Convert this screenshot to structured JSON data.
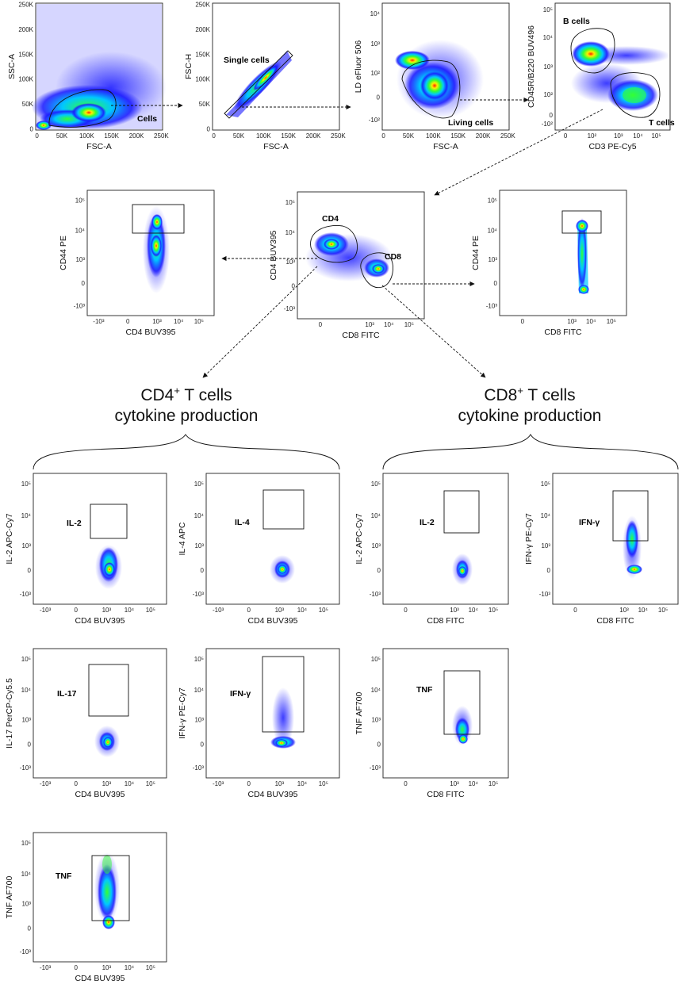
{
  "headings": {
    "cd4": {
      "line1": "CD4",
      "sup": "+",
      "rest": " T cells",
      "line2": "cytokine production"
    },
    "cd8": {
      "line1": "CD8",
      "sup": "+",
      "rest": " T cells",
      "line2": "cytokine production"
    }
  },
  "panels": [
    {
      "id": "p1",
      "xlabel": "FSC-A",
      "ylabel": "SSC-A",
      "xscale": "linear",
      "yscale": "linear",
      "xticks": [
        "0",
        "50K",
        "100K",
        "150K",
        "200K",
        "250K"
      ],
      "yticks": [
        "0",
        "50K",
        "100K",
        "150K",
        "200K",
        "250K"
      ],
      "gate": "Cells"
    },
    {
      "id": "p2",
      "xlabel": "FSC-A",
      "ylabel": "FSC-H",
      "xscale": "linear",
      "yscale": "linear",
      "xticks": [
        "0",
        "50K",
        "100K",
        "150K",
        "200K",
        "250K"
      ],
      "yticks": [
        "0",
        "50K",
        "100K",
        "150K",
        "200K",
        "250K"
      ],
      "gate": "Single cells"
    },
    {
      "id": "p3",
      "xlabel": "FSC-A",
      "ylabel": "LD eFluor 506",
      "xscale": "linear",
      "yscale": "bio",
      "xticks": [
        "0",
        "50K",
        "100K",
        "150K",
        "200K",
        "250K"
      ],
      "yticks": [
        "-10²",
        "0",
        "10²",
        "10³",
        "10⁴"
      ],
      "gate": "Living cells"
    },
    {
      "id": "p4",
      "xlabel": "CD3 PE-Cy5",
      "ylabel": "CD45R/B220 BUV496",
      "xscale": "bio",
      "yscale": "bio",
      "xticks": [
        "0",
        "10²",
        "10³",
        "10⁴",
        "10⁵"
      ],
      "yticks": [
        "-10²",
        "0",
        "10²",
        "10³",
        "10⁴",
        "10⁵"
      ],
      "gates": [
        "B cells",
        "T cells"
      ]
    },
    {
      "id": "p5",
      "xlabel": "CD8 FITC",
      "ylabel": "CD4 BUV395",
      "xscale": "bio",
      "yscale": "bio",
      "xticks": [
        "0",
        "10³",
        "10⁴",
        "10⁵"
      ],
      "yticks": [
        "-10³",
        "0",
        "10³",
        "10⁴",
        "10⁵"
      ],
      "gates": [
        "CD4",
        "CD8"
      ]
    },
    {
      "id": "p6",
      "xlabel": "CD4 BUV395",
      "ylabel": "CD44 PE",
      "xscale": "bio",
      "yscale": "bio",
      "xticks": [
        "-10³",
        "0",
        "10³",
        "10⁴",
        "10⁵"
      ],
      "yticks": [
        "-10³",
        "0",
        "10³",
        "10⁴",
        "10⁵"
      ]
    },
    {
      "id": "p7",
      "xlabel": "CD8 FITC",
      "ylabel": "CD44 PE",
      "xscale": "bio",
      "yscale": "bio",
      "xticks": [
        "0",
        "10³",
        "10⁴",
        "10⁵"
      ],
      "yticks": [
        "-10³",
        "0",
        "10³",
        "10⁴",
        "10⁵"
      ]
    },
    {
      "id": "p8",
      "xlabel": "CD4 BUV395",
      "ylabel": "IL-2 APC-Cy7",
      "xscale": "bio",
      "yscale": "bio",
      "xticks": [
        "-10³",
        "0",
        "10³",
        "10⁴",
        "10⁵"
      ],
      "yticks": [
        "-10³",
        "0",
        "10³",
        "10⁴",
        "10⁵"
      ],
      "gate": "IL-2"
    },
    {
      "id": "p9",
      "xlabel": "CD4 BUV395",
      "ylabel": "IL-4 APC",
      "xscale": "bio",
      "yscale": "bio",
      "xticks": [
        "-10³",
        "0",
        "10³",
        "10⁴",
        "10⁵"
      ],
      "yticks": [
        "-10³",
        "0",
        "10³",
        "10⁴",
        "10⁵"
      ],
      "gate": "IL-4"
    },
    {
      "id": "p10",
      "xlabel": "CD8 FITC",
      "ylabel": "IL-2 APC-Cy7",
      "xscale": "bio",
      "yscale": "bio",
      "xticks": [
        "0",
        "10³",
        "10⁴",
        "10⁵"
      ],
      "yticks": [
        "-10³",
        "0",
        "10³",
        "10⁴",
        "10⁵"
      ],
      "gate": "IL-2"
    },
    {
      "id": "p11",
      "xlabel": "CD8 FITC",
      "ylabel": "IFN-γ PE-Cy7",
      "xscale": "bio",
      "yscale": "bio",
      "xticks": [
        "0",
        "10³",
        "10⁴",
        "10⁵"
      ],
      "yticks": [
        "-10³",
        "0",
        "10³",
        "10⁴",
        "10⁵"
      ],
      "gate": "IFN-γ"
    },
    {
      "id": "p12",
      "xlabel": "CD4 BUV395",
      "ylabel": "IL-17 PerCP-Cy5.5",
      "xscale": "bio",
      "yscale": "bio",
      "xticks": [
        "-10³",
        "0",
        "10³",
        "10⁴",
        "10⁵"
      ],
      "yticks": [
        "-10³",
        "0",
        "10³",
        "10⁴",
        "10⁵"
      ],
      "gate": "IL-17"
    },
    {
      "id": "p13",
      "xlabel": "CD4 BUV395",
      "ylabel": "IFN-γ PE-Cy7",
      "xscale": "bio",
      "yscale": "bio",
      "xticks": [
        "-10³",
        "0",
        "10³",
        "10⁴",
        "10⁵"
      ],
      "yticks": [
        "-10³",
        "0",
        "10³",
        "10⁴",
        "10⁵"
      ],
      "gate": "IFN-γ"
    },
    {
      "id": "p14",
      "xlabel": "CD8 FITC",
      "ylabel": "TNF AF700",
      "xscale": "bio",
      "yscale": "bio",
      "xticks": [
        "0",
        "10³",
        "10⁴",
        "10⁵"
      ],
      "yticks": [
        "-10³",
        "0",
        "10³",
        "10⁴",
        "10⁵"
      ],
      "gate": "TNF"
    },
    {
      "id": "p15",
      "xlabel": "CD4 BUV395",
      "ylabel": "TNF AF700",
      "xscale": "bio",
      "yscale": "bio",
      "xticks": [
        "-10³",
        "0",
        "10³",
        "10⁴",
        "10⁵"
      ],
      "yticks": [
        "-10³",
        "0",
        "10³",
        "10⁴",
        "10⁵"
      ],
      "gate": "TNF"
    }
  ],
  "colors": {
    "low": "#1a1aff",
    "mid": "#00c8ff",
    "high": "#33ff33",
    "peak": "#ffee00",
    "core": "#ff2200"
  }
}
